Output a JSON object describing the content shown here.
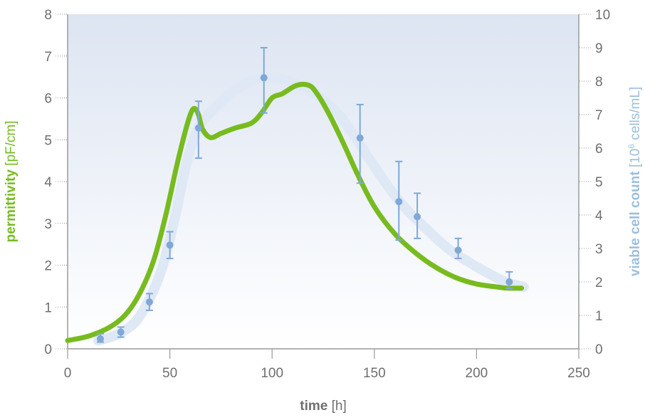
{
  "chart_data": {
    "type": "line",
    "xlabel_bold": "time",
    "xlabel_unit": " [h]",
    "ylabel_left_bold": "permittivity",
    "ylabel_left_unit": " [pF/cm]",
    "ylabel_right_bold": "viable cell count",
    "ylabel_right_unit_pre": " [10",
    "ylabel_right_unit_sup": "6",
    "ylabel_right_unit_post": " cells/mL]",
    "xlim": [
      0,
      250
    ],
    "ylim_left": [
      0,
      8
    ],
    "ylim_right": [
      0,
      10
    ],
    "x_ticks": [
      "0",
      "50",
      "100",
      "150",
      "200",
      "250"
    ],
    "y_left_ticks": [
      "0",
      "1",
      "2",
      "3",
      "4",
      "5",
      "6",
      "7",
      "8"
    ],
    "y_right_ticks": [
      "0",
      "1",
      "2",
      "3",
      "4",
      "5",
      "6",
      "7",
      "8",
      "9",
      "10"
    ],
    "grid": false,
    "series": [
      {
        "axis": "left",
        "color": "#77bb1f",
        "x": [
          0,
          10,
          20,
          28,
          35,
          42,
          48,
          53,
          57,
          60,
          62,
          64,
          66,
          70,
          75,
          82,
          90,
          95,
          100,
          105,
          112,
          118,
          122,
          128,
          135,
          142,
          150,
          160,
          170,
          180,
          190,
          200,
          210,
          215,
          222
        ],
        "y": [
          0.2,
          0.3,
          0.5,
          0.8,
          1.3,
          2.1,
          3.2,
          4.3,
          5.1,
          5.6,
          5.75,
          5.6,
          5.25,
          5.05,
          5.15,
          5.28,
          5.4,
          5.65,
          6.0,
          6.1,
          6.3,
          6.3,
          6.1,
          5.6,
          4.9,
          4.15,
          3.4,
          2.75,
          2.3,
          1.95,
          1.7,
          1.55,
          1.48,
          1.45,
          1.45
        ]
      },
      {
        "axis": "right",
        "color": "#dfe8f5",
        "x": [
          15,
          25,
          35,
          45,
          52,
          58,
          64,
          72,
          80,
          88,
          96,
          103,
          110,
          118,
          126,
          134,
          142,
          150,
          158,
          166,
          176,
          186,
          196,
          206,
          214,
          223
        ],
        "y": [
          0.25,
          0.45,
          0.95,
          2.2,
          3.8,
          5.5,
          6.6,
          7.2,
          7.65,
          7.95,
          8.1,
          8.1,
          7.95,
          7.75,
          7.4,
          6.9,
          6.2,
          5.45,
          4.75,
          4.15,
          3.55,
          3.0,
          2.6,
          2.25,
          2.0,
          1.85
        ]
      },
      {
        "axis": "right",
        "color": "#7ea8d8",
        "x": [
          16,
          26,
          40,
          50,
          64,
          96,
          143,
          162,
          171,
          191,
          216
        ],
        "y": [
          0.3,
          0.5,
          1.4,
          3.1,
          6.6,
          8.1,
          6.3,
          4.4,
          3.95,
          2.95,
          2.0
        ],
        "err_low": [
          0.2,
          0.35,
          1.15,
          2.7,
          5.7,
          7.05,
          4.95,
          3.25,
          3.3,
          2.7,
          1.8
        ],
        "err_high": [
          0.45,
          0.65,
          1.65,
          3.5,
          7.4,
          9.0,
          7.3,
          5.6,
          4.65,
          3.3,
          2.3
        ]
      }
    ],
    "colors": {
      "green_curve": "#77bb1f",
      "blue_points": "#7ea8d8",
      "blue_band": "#dfe8f5",
      "plot_bg_top": "#dde5f2",
      "plot_bg_bottom": "#ffffff"
    }
  }
}
